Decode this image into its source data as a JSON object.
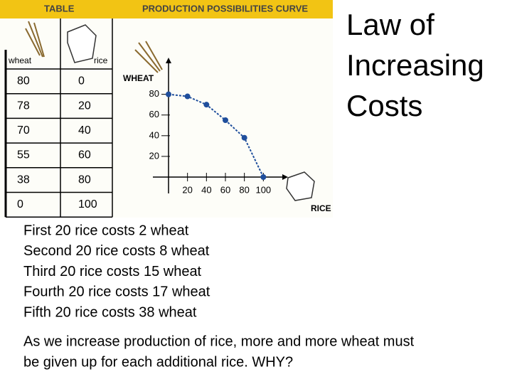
{
  "header": {
    "table_label": "TABLE",
    "chart_label": "PRODUCTION POSSIBILITIES CURVE"
  },
  "title_lines": [
    "Law of",
    "Increasing",
    "Costs"
  ],
  "table": {
    "columns": [
      "wheat",
      "rice"
    ],
    "rows": [
      [
        "80",
        "0"
      ],
      [
        "78",
        "20"
      ],
      [
        "70",
        "40"
      ],
      [
        "55",
        "60"
      ],
      [
        "38",
        "80"
      ],
      [
        "0",
        "100"
      ]
    ]
  },
  "chart_data": {
    "type": "line",
    "x_label": "RICE",
    "y_label": "WHEAT",
    "x": [
      0,
      20,
      40,
      60,
      80,
      100
    ],
    "series": [
      {
        "values": [
          80,
          78,
          70,
          55,
          38,
          0
        ],
        "color": "#1f4e9c"
      }
    ],
    "xlim": [
      0,
      120
    ],
    "ylim": [
      0,
      110
    ],
    "xticks": [
      20,
      40,
      60,
      80,
      100
    ],
    "yticks": [
      20,
      40,
      60,
      80
    ]
  },
  "notes": [
    "First 20 rice costs 2 wheat",
    "Second 20 rice costs 8 wheat",
    "Third 20 rice costs 15 wheat",
    "Fourth 20 rice costs 17 wheat",
    "Fifth 20 rice costs 38 wheat"
  ],
  "conclusion": [
    "As we increase production of rice, more and more wheat must",
    "be given up for each additional rice.  WHY?"
  ]
}
